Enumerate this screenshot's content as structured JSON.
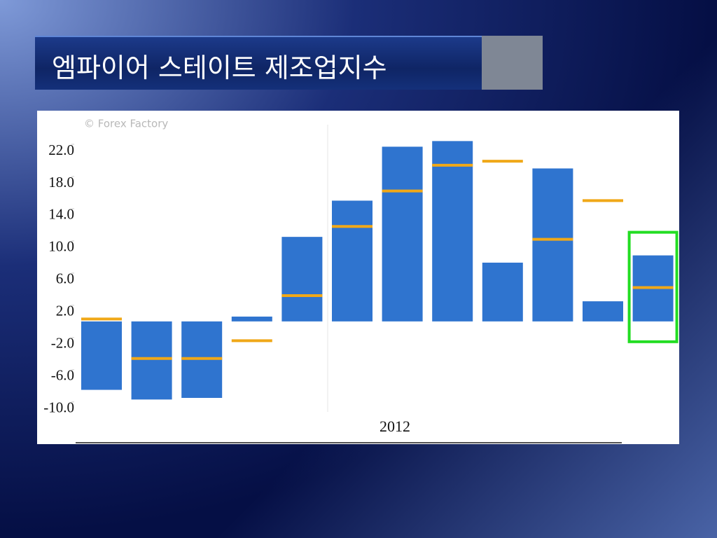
{
  "title": "엠파이어 스테이트 제조업지수",
  "chart_data": {
    "type": "bar",
    "watermark": "© Forex Factory",
    "xlabel": "2012",
    "categories": [
      null,
      null,
      null,
      null,
      null,
      null,
      null,
      null,
      null,
      null,
      null,
      null
    ],
    "series": [
      {
        "color": "#2f74cf",
        "values": [
          -8.5,
          -9.7,
          -9.5,
          0.6,
          10.5,
          15.0,
          21.7,
          22.4,
          7.3,
          19.0,
          2.5,
          8.2
        ]
      },
      {
        "color": "#f0a818",
        "style": "marker",
        "values": [
          0.3,
          -4.6,
          -4.6,
          -2.4,
          3.2,
          11.8,
          16.2,
          19.4,
          19.9,
          10.2,
          15.0,
          4.2
        ]
      }
    ],
    "ylim": [
      -11.5,
      26
    ],
    "yticks": [
      {
        "value": 22,
        "label": "22.0"
      },
      {
        "value": 18,
        "label": "18.0"
      },
      {
        "value": 14,
        "label": "14.0"
      },
      {
        "value": 10,
        "label": "10.0"
      },
      {
        "value": 6,
        "label": "6.0"
      },
      {
        "value": 2,
        "label": "2.0"
      },
      {
        "value": -2,
        "label": "-2.0"
      },
      {
        "value": -6,
        "label": "-6.0"
      },
      {
        "value": -10,
        "label": "-10.0"
      }
    ],
    "highlight_index": 11,
    "highlight_color": "#22dd22"
  }
}
